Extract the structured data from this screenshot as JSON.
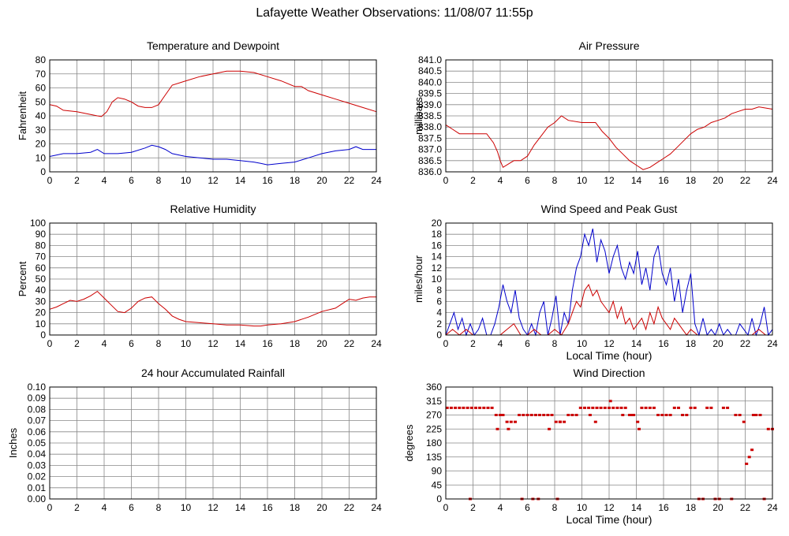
{
  "title": "Lafayette Weather Observations: 11/08/07 11:55p",
  "colors": {
    "series_red": "#cc0000",
    "series_blue": "#0000cc",
    "grid": "#888888",
    "frame": "#000000"
  },
  "chart_data": [
    {
      "id": "temp",
      "type": "line",
      "title": "Temperature and Dewpoint",
      "xlabel": "",
      "ylabel": "Fahrenheit",
      "xlim": [
        0,
        24
      ],
      "ylim": [
        0,
        80
      ],
      "xticks": [
        0,
        2,
        4,
        6,
        8,
        10,
        12,
        14,
        16,
        18,
        20,
        22,
        24
      ],
      "yticks": [
        0,
        10,
        20,
        30,
        40,
        50,
        60,
        70,
        80
      ],
      "grid": true,
      "series": [
        {
          "color": "#cc0000",
          "x": [
            0,
            0.5,
            1,
            2,
            3,
            3.5,
            3.8,
            4.2,
            4.6,
            5,
            5.5,
            6,
            6.5,
            7,
            7.5,
            8,
            8.5,
            9,
            10,
            11,
            12,
            13,
            14,
            15,
            16,
            17,
            18,
            18.5,
            19,
            20,
            21,
            22,
            23,
            24
          ],
          "y": [
            48,
            47,
            44,
            43,
            41,
            40,
            39.5,
            43,
            50,
            53,
            52,
            50,
            47,
            46,
            46,
            48,
            55,
            62,
            65,
            68,
            70,
            72,
            72,
            71,
            68,
            65,
            61,
            61,
            58,
            55,
            52,
            49,
            46,
            43
          ]
        },
        {
          "color": "#0000cc",
          "x": [
            0,
            1,
            2,
            3,
            3.5,
            4,
            5,
            6,
            7,
            7.5,
            8,
            8.5,
            9,
            10,
            11,
            12,
            13,
            14,
            15,
            15.5,
            16,
            17,
            18,
            19,
            20,
            21,
            22,
            22.5,
            23,
            24
          ],
          "y": [
            11,
            13,
            13,
            14,
            16,
            13,
            13,
            14,
            17,
            19,
            18,
            16,
            13,
            11,
            10,
            9,
            9,
            8,
            7,
            6,
            5,
            6,
            7,
            10,
            13,
            15,
            16,
            18,
            16,
            16
          ]
        }
      ]
    },
    {
      "id": "press",
      "type": "line",
      "title": "Air Pressure",
      "xlabel": "",
      "ylabel": "millibars",
      "xlim": [
        0,
        24
      ],
      "ylim": [
        836.0,
        841.0
      ],
      "xticks": [
        0,
        2,
        4,
        6,
        8,
        10,
        12,
        14,
        16,
        18,
        20,
        22,
        24
      ],
      "yticks": [
        "836.0",
        "836.5",
        "837.0",
        "837.5",
        "838.0",
        "838.5",
        "839.0",
        "839.5",
        "840.0",
        "840.5",
        "841.0"
      ],
      "grid": true,
      "series": [
        {
          "color": "#cc0000",
          "x": [
            0,
            0.5,
            1,
            2,
            3,
            3.5,
            3.8,
            4,
            4.2,
            5,
            5.5,
            6,
            6.5,
            7,
            7.5,
            8,
            8.5,
            9,
            10,
            11,
            11.5,
            12,
            12.5,
            13,
            13.5,
            14,
            14.5,
            15,
            15.5,
            16,
            16.5,
            17,
            17.5,
            18,
            18.5,
            19,
            19.5,
            20,
            20.5,
            21,
            21.5,
            22,
            22.5,
            23,
            24
          ],
          "y": [
            838.1,
            837.9,
            837.7,
            837.7,
            837.7,
            837.3,
            836.9,
            836.5,
            836.2,
            836.5,
            836.5,
            836.7,
            837.2,
            837.6,
            838.0,
            838.2,
            838.5,
            838.3,
            838.2,
            838.2,
            837.8,
            837.5,
            837.1,
            836.8,
            836.5,
            836.3,
            836.1,
            836.2,
            836.4,
            836.6,
            836.8,
            837.1,
            837.4,
            837.7,
            837.9,
            838.0,
            838.2,
            838.3,
            838.4,
            838.6,
            838.7,
            838.8,
            838.8,
            838.9,
            838.8
          ]
        }
      ]
    },
    {
      "id": "rh",
      "type": "line",
      "title": "Relative Humidity",
      "xlabel": "",
      "ylabel": "Percent",
      "xlim": [
        0,
        24
      ],
      "ylim": [
        0,
        100
      ],
      "xticks": [
        0,
        2,
        4,
        6,
        8,
        10,
        12,
        14,
        16,
        18,
        20,
        22,
        24
      ],
      "yticks": [
        0,
        10,
        20,
        30,
        40,
        50,
        60,
        70,
        80,
        90,
        100
      ],
      "grid": true,
      "series": [
        {
          "color": "#cc0000",
          "x": [
            0,
            0.5,
            1,
            1.5,
            2,
            2.5,
            3,
            3.5,
            4,
            4.5,
            5,
            5.5,
            6,
            6.5,
            7,
            7.5,
            8,
            8.5,
            9,
            9.5,
            10,
            11,
            12,
            13,
            14,
            15,
            15.5,
            16,
            17,
            18,
            19,
            20,
            21,
            21.5,
            22,
            22.5,
            23,
            23.5,
            24
          ],
          "y": [
            23,
            25,
            28,
            31,
            30,
            32,
            35,
            39,
            33,
            27,
            21,
            20,
            24,
            30,
            33,
            34,
            28,
            23,
            17,
            14,
            12,
            11,
            10,
            9,
            9,
            8,
            8,
            9,
            10,
            12,
            16,
            21,
            24,
            28,
            32,
            31,
            33,
            34,
            34
          ]
        }
      ]
    },
    {
      "id": "wind",
      "type": "line",
      "title": "Wind Speed and Peak Gust",
      "xlabel": "Local Time (hour)",
      "ylabel": "miles/hour",
      "xlim": [
        0,
        24
      ],
      "ylim": [
        0,
        20
      ],
      "xticks": [
        0,
        2,
        4,
        6,
        8,
        10,
        12,
        14,
        16,
        18,
        20,
        22,
        24
      ],
      "yticks": [
        0,
        2,
        4,
        6,
        8,
        10,
        12,
        14,
        16,
        18,
        20
      ],
      "grid": true,
      "series": [
        {
          "color": "#0000cc",
          "x": [
            0,
            0.3,
            0.6,
            0.9,
            1.2,
            1.5,
            1.8,
            2.1,
            2.4,
            2.7,
            3,
            3.3,
            3.6,
            3.9,
            4.2,
            4.5,
            4.8,
            5.1,
            5.4,
            5.7,
            6,
            6.3,
            6.6,
            6.9,
            7.2,
            7.5,
            7.8,
            8.1,
            8.4,
            8.7,
            9,
            9.3,
            9.6,
            9.9,
            10.2,
            10.5,
            10.8,
            11.1,
            11.4,
            11.7,
            12,
            12.3,
            12.6,
            12.9,
            13.2,
            13.5,
            13.8,
            14.1,
            14.4,
            14.7,
            15,
            15.3,
            15.6,
            15.9,
            16.2,
            16.5,
            16.8,
            17.1,
            17.4,
            17.7,
            18,
            18.3,
            18.6,
            18.9,
            19.2,
            19.5,
            19.8,
            20.1,
            20.4,
            20.7,
            21,
            21.3,
            21.6,
            21.9,
            22.2,
            22.5,
            22.8,
            23.1,
            23.4,
            23.7,
            24
          ],
          "y": [
            0,
            2,
            4,
            1,
            3,
            0,
            2,
            0,
            1,
            3,
            0,
            0,
            2,
            5,
            9,
            6,
            4,
            8,
            3,
            1,
            0,
            2,
            0,
            4,
            6,
            0,
            3,
            7,
            0,
            4,
            2,
            8,
            12,
            14,
            18,
            16,
            19,
            13,
            17,
            15,
            11,
            14,
            16,
            12,
            10,
            13,
            11,
            15,
            9,
            12,
            8,
            14,
            16,
            11,
            9,
            12,
            6,
            10,
            4,
            8,
            11,
            2,
            0,
            3,
            0,
            1,
            0,
            2,
            0,
            1,
            0,
            0,
            2,
            1,
            0,
            3,
            0,
            2,
            5,
            0,
            1
          ]
        },
        {
          "color": "#cc0000",
          "x": [
            0,
            0.5,
            1,
            1.5,
            2,
            2.5,
            3,
            3.5,
            4,
            4.5,
            5,
            5.5,
            6,
            6.5,
            7,
            7.5,
            8,
            8.5,
            9,
            9.3,
            9.6,
            9.9,
            10.2,
            10.5,
            10.8,
            11.1,
            11.4,
            11.7,
            12,
            12.3,
            12.6,
            12.9,
            13.2,
            13.5,
            13.8,
            14.1,
            14.4,
            14.7,
            15,
            15.3,
            15.6,
            15.9,
            16.2,
            16.5,
            16.8,
            17.1,
            17.4,
            17.7,
            18,
            18.5,
            19,
            19.5,
            20,
            20.5,
            21,
            21.5,
            22,
            22.5,
            23,
            23.5,
            24
          ],
          "y": [
            0,
            1,
            0,
            1,
            0,
            0,
            0,
            0,
            0,
            1,
            2,
            0,
            0,
            1,
            0,
            0,
            1,
            0,
            2,
            4,
            6,
            5,
            8,
            9,
            7,
            8,
            6,
            5,
            4,
            6,
            3,
            5,
            2,
            3,
            1,
            2,
            3,
            1,
            4,
            2,
            5,
            3,
            2,
            1,
            3,
            2,
            1,
            0,
            1,
            0,
            0,
            0,
            0,
            0,
            0,
            0,
            0,
            0,
            1,
            0,
            0
          ]
        }
      ]
    },
    {
      "id": "rain",
      "type": "line",
      "title": "24 hour Accumulated Rainfall",
      "xlabel": "",
      "ylabel": "Inches",
      "xlim": [
        0,
        24
      ],
      "ylim": [
        0,
        0.1
      ],
      "xticks": [
        0,
        2,
        4,
        6,
        8,
        10,
        12,
        14,
        16,
        18,
        20,
        22,
        24
      ],
      "yticks": [
        "0.00",
        "0.01",
        "0.02",
        "0.03",
        "0.04",
        "0.05",
        "0.06",
        "0.07",
        "0.08",
        "0.09",
        "0.10"
      ],
      "grid": true,
      "series": [
        {
          "color": "#cc0000",
          "x": [
            0,
            24
          ],
          "y": [
            0,
            0
          ]
        }
      ]
    },
    {
      "id": "dir",
      "type": "scatter",
      "title": "Wind Direction",
      "xlabel": "Local Time (hour)",
      "ylabel": "degrees",
      "xlim": [
        0,
        24
      ],
      "ylim": [
        0,
        360
      ],
      "xticks": [
        0,
        2,
        4,
        6,
        8,
        10,
        12,
        14,
        16,
        18,
        20,
        22,
        24
      ],
      "yticks": [
        0,
        45,
        90,
        135,
        180,
        225,
        270,
        315,
        360
      ],
      "grid": true,
      "series": [
        {
          "color": "#cc0000",
          "x": [
            0.1,
            0.4,
            0.7,
            1.0,
            1.3,
            1.6,
            1.9,
            2.2,
            2.5,
            2.8,
            3.1,
            3.4,
            3.7,
            4.0,
            4.2,
            4.5,
            4.8,
            5.1,
            5.4,
            5.7,
            6.0,
            6.3,
            6.6,
            6.9,
            7.2,
            7.5,
            7.8,
            8.1,
            8.4,
            8.7,
            9.0,
            9.3,
            9.6,
            9.9,
            10.2,
            10.5,
            10.8,
            11.1,
            11.4,
            11.7,
            12.0,
            12.3,
            12.6,
            12.9,
            13.2,
            13.5,
            13.8,
            14.1,
            14.4,
            14.7,
            15.0,
            15.3,
            15.6,
            15.9,
            16.2,
            16.5,
            16.8,
            17.1,
            17.4,
            17.7,
            18.0,
            18.3,
            18.6,
            18.9,
            19.2,
            19.5,
            19.8,
            20.1,
            20.4,
            20.7,
            21.0,
            21.3,
            21.6,
            21.9,
            22.1,
            22.3,
            22.5,
            22.8,
            23.1,
            23.4,
            23.7,
            24.0,
            1.8,
            3.8,
            4.6,
            5.6,
            6.4,
            6.8,
            8.2,
            10.6,
            12.1,
            13.6,
            14.2,
            22.6,
            7.6,
            8.4,
            11.0,
            13.0
          ],
          "y": [
            293,
            293,
            293,
            293,
            293,
            293,
            293,
            293,
            293,
            293,
            293,
            293,
            270,
            270,
            270,
            248,
            248,
            248,
            270,
            270,
            270,
            270,
            270,
            270,
            270,
            270,
            270,
            248,
            248,
            248,
            270,
            270,
            270,
            293,
            293,
            293,
            293,
            293,
            293,
            293,
            293,
            293,
            293,
            293,
            293,
            270,
            270,
            248,
            293,
            293,
            293,
            293,
            270,
            270,
            270,
            270,
            293,
            293,
            270,
            270,
            293,
            293,
            0,
            0,
            293,
            293,
            0,
            0,
            293,
            293,
            0,
            270,
            270,
            248,
            113,
            135,
            158,
            270,
            270,
            0,
            225,
            225,
            0,
            225,
            225,
            0,
            0,
            0,
            0,
            270,
            315,
            270,
            225,
            270,
            225,
            248,
            248,
            270
          ]
        }
      ]
    }
  ]
}
